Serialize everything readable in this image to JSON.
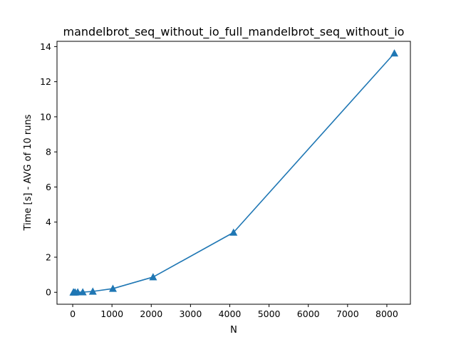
{
  "chart_data": {
    "type": "line",
    "title": "mandelbrot_seq_without_io_full_mandelbrot_seq_without_io",
    "xlabel": "N",
    "ylabel": "Time [s] - AVG of 10 runs",
    "xlim": [
      -400,
      8600
    ],
    "ylim": [
      -0.68,
      14.3
    ],
    "xticks": [
      0,
      1000,
      2000,
      3000,
      4000,
      5000,
      6000,
      7000,
      8000
    ],
    "yticks": [
      0,
      2,
      4,
      6,
      8,
      10,
      12,
      14
    ],
    "grid": false,
    "marker": "triangle-up",
    "color": "#1f77b4",
    "series": [
      {
        "x": [
          16,
          32,
          64,
          128,
          256,
          512,
          1024,
          2048,
          4096,
          8192
        ],
        "y": [
          0.0,
          0.0,
          0.0,
          0.01,
          0.01,
          0.05,
          0.21,
          0.87,
          3.41,
          13.62
        ]
      }
    ]
  }
}
